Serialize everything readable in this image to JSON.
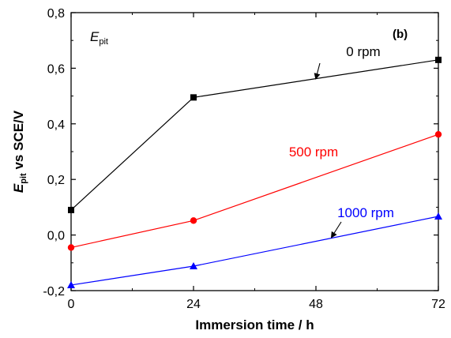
{
  "chart_data": {
    "type": "line",
    "panel_label": "(b)",
    "inset_label": {
      "main": "E",
      "sub": "pit"
    },
    "x": [
      0,
      24,
      48,
      72
    ],
    "x_ticks": [
      "0",
      "24",
      "48",
      "72"
    ],
    "y_ticks": [
      "-0,2",
      "0,0",
      "0,2",
      "0,4",
      "0,6",
      "0,8"
    ],
    "xlim": [
      0,
      72
    ],
    "ylim": [
      -0.2,
      0.8
    ],
    "xlabel": "Immersion time / h",
    "ylabel": {
      "main": "E",
      "sub": "pit",
      "rest": " vs SCE/V"
    },
    "series": [
      {
        "name": "0 rpm",
        "color": "#000000",
        "marker": "square",
        "x": [
          0,
          24,
          72
        ],
        "values": [
          0.09,
          0.495,
          0.63
        ]
      },
      {
        "name": "500 rpm",
        "color": "#ff0000",
        "marker": "circle",
        "x": [
          0,
          24,
          72
        ],
        "values": [
          -0.045,
          0.052,
          0.362
        ]
      },
      {
        "name": "1000 rpm",
        "color": "#0000ff",
        "marker": "triangle",
        "x": [
          0,
          24,
          72
        ],
        "values": [
          -0.18,
          -0.112,
          0.067
        ]
      }
    ]
  }
}
